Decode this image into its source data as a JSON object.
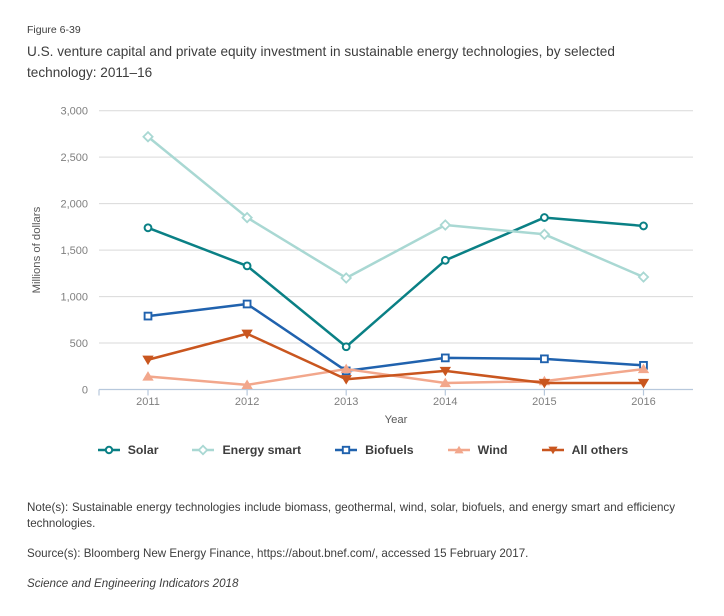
{
  "figure_label": "Figure 6-39",
  "title": "U.S. venture capital and private equity investment in sustainable energy technologies, by selected technology: 2011–16",
  "chart_data": {
    "type": "line",
    "x": [
      "2011",
      "2012",
      "2013",
      "2014",
      "2015",
      "2016"
    ],
    "xlabel": "Year",
    "ylabel": "Millions of dollars",
    "ylim": [
      0,
      3000
    ],
    "ytick_step": 500,
    "ytick_labels": [
      "0",
      "500",
      "1,000",
      "1,500",
      "2,000",
      "2,500",
      "3,000"
    ],
    "grid": true,
    "legend_position": "bottom",
    "series": [
      {
        "name": "Solar",
        "color": "#0a8085",
        "marker": "circle-open",
        "values": [
          1740,
          1330,
          460,
          1390,
          1850,
          1760
        ]
      },
      {
        "name": "Energy smart",
        "color": "#a9d8d3",
        "marker": "diamond-open",
        "values": [
          2720,
          1850,
          1200,
          1770,
          1670,
          1210
        ]
      },
      {
        "name": "Biofuels",
        "color": "#2062ae",
        "marker": "square-open",
        "values": [
          790,
          920,
          200,
          340,
          330,
          260
        ]
      },
      {
        "name": "Wind",
        "color": "#f2a78c",
        "marker": "triangle-up",
        "values": [
          140,
          50,
          220,
          70,
          90,
          220
        ]
      },
      {
        "name": "All others",
        "color": "#c9561f",
        "marker": "triangle-down",
        "values": [
          320,
          600,
          110,
          200,
          70,
          70
        ]
      }
    ],
    "colors": {
      "grid": "#d9d9d9",
      "axis_line": "#b7c8dc",
      "tick_label": "#7f7f7f",
      "axis_title": "#595959"
    }
  },
  "notes": {
    "note": "Note(s): Sustainable energy technologies include biomass, geothermal, wind, solar, biofuels, and energy smart and efficiency technologies.",
    "source": "Source(s): Bloomberg New Energy Finance, https://about.bnef.com/, accessed 15 February 2017.",
    "credit": "Science and Engineering Indicators 2018"
  }
}
